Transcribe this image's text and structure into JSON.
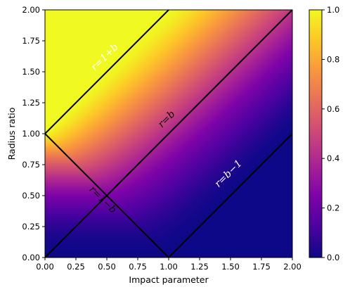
{
  "chart_data": {
    "type": "heatmap",
    "title": "",
    "xlabel": "Impact parameter",
    "ylabel": "Radius ratio",
    "xlim": [
      0.0,
      2.0
    ],
    "ylim": [
      0.0,
      2.0
    ],
    "xticks": [
      "0.00",
      "0.25",
      "0.50",
      "0.75",
      "1.00",
      "1.25",
      "1.50",
      "1.75",
      "2.00"
    ],
    "yticks": [
      "0.00",
      "0.25",
      "0.50",
      "0.75",
      "1.00",
      "1.25",
      "1.50",
      "1.75",
      "2.00"
    ],
    "colormap": "plasma",
    "colorbar": {
      "range": [
        0.0,
        1.0
      ],
      "ticks": [
        "0.0",
        "0.2",
        "0.4",
        "0.6",
        "0.8",
        "1.0"
      ]
    },
    "grid": false,
    "boundary_lines": [
      {
        "label": "r=1+b",
        "points": [
          [
            0,
            1
          ],
          [
            1,
            2
          ]
        ]
      },
      {
        "label": "r=b",
        "points": [
          [
            0,
            0
          ],
          [
            2,
            2
          ]
        ]
      },
      {
        "label": "r=b−1",
        "points": [
          [
            1,
            0
          ],
          [
            2,
            1
          ]
        ]
      },
      {
        "label": "r=1−b",
        "points": [
          [
            0,
            1
          ],
          [
            1,
            0
          ]
        ]
      }
    ],
    "annotations": [
      {
        "text": "r=1+b",
        "x": 0.5,
        "y": 1.6,
        "color": "#ffffff"
      },
      {
        "text": "r=b",
        "x": 1.0,
        "y": 1.1,
        "color": "#000000"
      },
      {
        "text": "r=b−1",
        "x": 1.5,
        "y": 0.66,
        "color": "#ffffff"
      },
      {
        "text": "r=1−b",
        "x": 0.45,
        "y": 0.45,
        "color": "#000000"
      }
    ]
  }
}
